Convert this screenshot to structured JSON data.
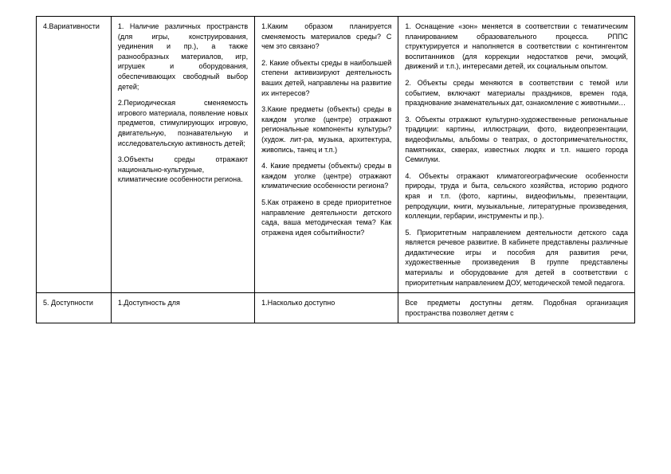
{
  "table": {
    "columns": [
      {
        "class": "c1"
      },
      {
        "class": "c2"
      },
      {
        "class": "c3"
      },
      {
        "class": "c4"
      }
    ],
    "rows": [
      {
        "cells": [
          {
            "name": "row1-col1-label",
            "text": "4.Вариативности"
          },
          {
            "name": "row1-col2-content",
            "paragraphs": [
              "1. Наличие различных пространств (для игры, конструирования, уединения и пр.), а также разнообразных материалов, игр, игрушек и оборудования, обеспечивающих свободный выбор детей;",
              "2.Периодическая сменяемость игрового материала, появление новых предметов, стимулирующих игровую, двигательную, познавательную и исследовательскую активность детей;",
              "3.Объекты среды отражают национально-культурные, климатические особенности региона."
            ]
          },
          {
            "name": "row1-col3-content",
            "paragraphs": [
              "1.Каким образом планируется сменяемость материалов среды? С чем это связано?",
              "2. Какие объекты среды в наибольшей степени активизируют деятельность ваших детей, направлены на развитие их интересов?",
              "3.Какие предметы (объекты) среды в каждом уголке (центре) отражают региональные компоненты культуры? (худож. лит-ра, музыка, архитектура, живопись, танец и т.п.)",
              "4. Какие предметы (объекты) среды в каждом уголке (центре) отражают климатические особенности региона?",
              "5.Как отражено в среде приоритетное направление деятельности детского сада, ваша методическая тема? Как отражена идея событийности?"
            ]
          },
          {
            "name": "row1-col4-content",
            "paragraphs": [
              "1. Оснащение «зон» меняется в соответствии с тематическим планированием образовательного процесса. РППС структурируется и наполняется в соответствии с контингентом воспитанников (для коррекции недостатков речи, эмоций, движений и т.п.), интересами детей, их социальным опытом.",
              "2. Объекты среды меняются в соответствии с темой или событием, включают материалы праздников, времен года, празднование знаменательных дат, ознакомление с животными…",
              "3. Объекты отражают культурно-художественные региональные традиции: картины, иллюстрации, фото, видеопрезентации, видеофильмы, альбомы о театрах, о достопримечательностях, памятниках, скверах, известных людях и т.п. нашего города Семилуки.",
              "4. Объекты отражают климатогеографические особенности природы, труда и быта, сельского хозяйства, историю родного края и т.п. (фото, картины, видеофильмы, презентации, репродукции, книги, музыкальные, литературные произведения, коллекции, гербарии, инструменты и пр.).",
              "5. Приоритетным направлением деятельности детского сада является речевое развитие. В кабинете представлены различные дидактические игры и пособия для развития речи, художественные произведения В группе представлены материалы и оборудование для детей в соответствии с приоритетным направлением ДОУ, методической темой педагога."
            ]
          }
        ]
      },
      {
        "cells": [
          {
            "name": "row2-col1-label",
            "text": "5. Доступности"
          },
          {
            "name": "row2-col2-content",
            "text": "1.Доступность для"
          },
          {
            "name": "row2-col3-content",
            "text": "1.Насколько доступно"
          },
          {
            "name": "row2-col4-content",
            "text": "Все предметы доступны детям. Подобная организация пространства позволяет детям с"
          }
        ]
      }
    ]
  },
  "style": {
    "border_color": "#000000",
    "font_size_pt": 9,
    "background": "#ffffff"
  }
}
